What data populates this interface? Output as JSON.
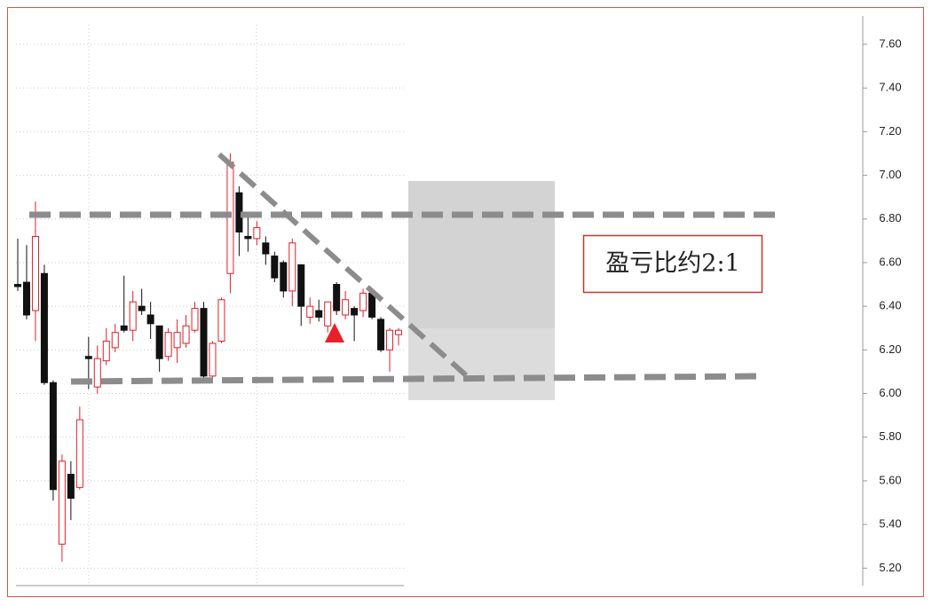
{
  "chart_data": {
    "type": "candlestick",
    "annotation": "盈亏比约2:1",
    "ylim": [
      5.12,
      7.73
    ],
    "yticks": [
      {
        "value": 5.2,
        "label": "5.20"
      },
      {
        "value": 5.4,
        "label": "5.40"
      },
      {
        "value": 5.6,
        "label": "5.60"
      },
      {
        "value": 5.8,
        "label": "5.80"
      },
      {
        "value": 6.0,
        "label": "6.00"
      },
      {
        "value": 6.2,
        "label": "6.20"
      },
      {
        "value": 6.4,
        "label": "6.40"
      },
      {
        "value": 6.6,
        "label": "6.60"
      },
      {
        "value": 6.8,
        "label": "6.80"
      },
      {
        "value": 7.0,
        "label": "7.00"
      },
      {
        "value": 7.2,
        "label": "7.20"
      },
      {
        "value": 7.4,
        "label": "7.40"
      },
      {
        "value": 7.6,
        "label": "7.60"
      }
    ],
    "grid": true,
    "up_color": "#e0202a",
    "down_color": "#111111",
    "open": [
      6.5,
      6.51,
      6.38,
      6.55,
      6.05,
      5.31,
      5.63,
      5.57,
      6.17,
      6.03,
      6.15,
      6.21,
      6.31,
      6.29,
      6.4,
      6.36,
      6.31,
      6.17,
      6.21,
      6.23,
      6.29,
      6.39,
      6.08,
      6.24,
      6.55,
      6.92,
      6.72,
      6.71,
      6.69,
      6.63,
      6.6,
      6.47,
      6.59,
      6.35,
      6.38,
      6.31,
      6.5,
      6.36,
      6.39,
      6.38,
      6.46,
      6.34,
      6.2,
      6.27
    ],
    "high": [
      6.71,
      6.68,
      6.88,
      6.59,
      6.06,
      5.72,
      5.69,
      5.94,
      6.26,
      6.22,
      6.3,
      6.32,
      6.54,
      6.47,
      6.48,
      6.42,
      6.31,
      6.3,
      6.34,
      6.36,
      6.42,
      6.42,
      6.24,
      6.44,
      7.1,
      6.95,
      6.82,
      6.79,
      6.72,
      6.65,
      6.61,
      6.71,
      6.59,
      6.44,
      6.43,
      6.42,
      6.51,
      6.47,
      6.4,
      6.48,
      6.47,
      6.35,
      6.3,
      6.3
    ],
    "low": [
      6.47,
      6.34,
      6.24,
      6.04,
      5.51,
      5.23,
      5.42,
      5.56,
      6.02,
      6.0,
      6.13,
      6.19,
      6.28,
      6.24,
      6.36,
      6.25,
      6.1,
      6.15,
      6.14,
      6.21,
      6.28,
      6.06,
      6.06,
      6.23,
      6.46,
      6.63,
      6.65,
      6.68,
      6.59,
      6.51,
      6.44,
      6.4,
      6.31,
      6.32,
      6.33,
      6.28,
      6.36,
      6.34,
      6.24,
      6.35,
      6.34,
      6.19,
      6.1,
      6.22
    ],
    "close": [
      6.49,
      6.36,
      6.72,
      6.05,
      5.56,
      5.69,
      5.52,
      5.88,
      6.16,
      6.16,
      6.24,
      6.28,
      6.29,
      6.42,
      6.38,
      6.32,
      6.16,
      6.28,
      6.28,
      6.31,
      6.39,
      6.08,
      6.23,
      6.43,
      7.06,
      6.74,
      6.71,
      6.76,
      6.64,
      6.53,
      6.47,
      6.69,
      6.4,
      6.4,
      6.35,
      6.42,
      6.38,
      6.43,
      6.36,
      6.46,
      6.35,
      6.2,
      6.29,
      6.29
    ]
  }
}
